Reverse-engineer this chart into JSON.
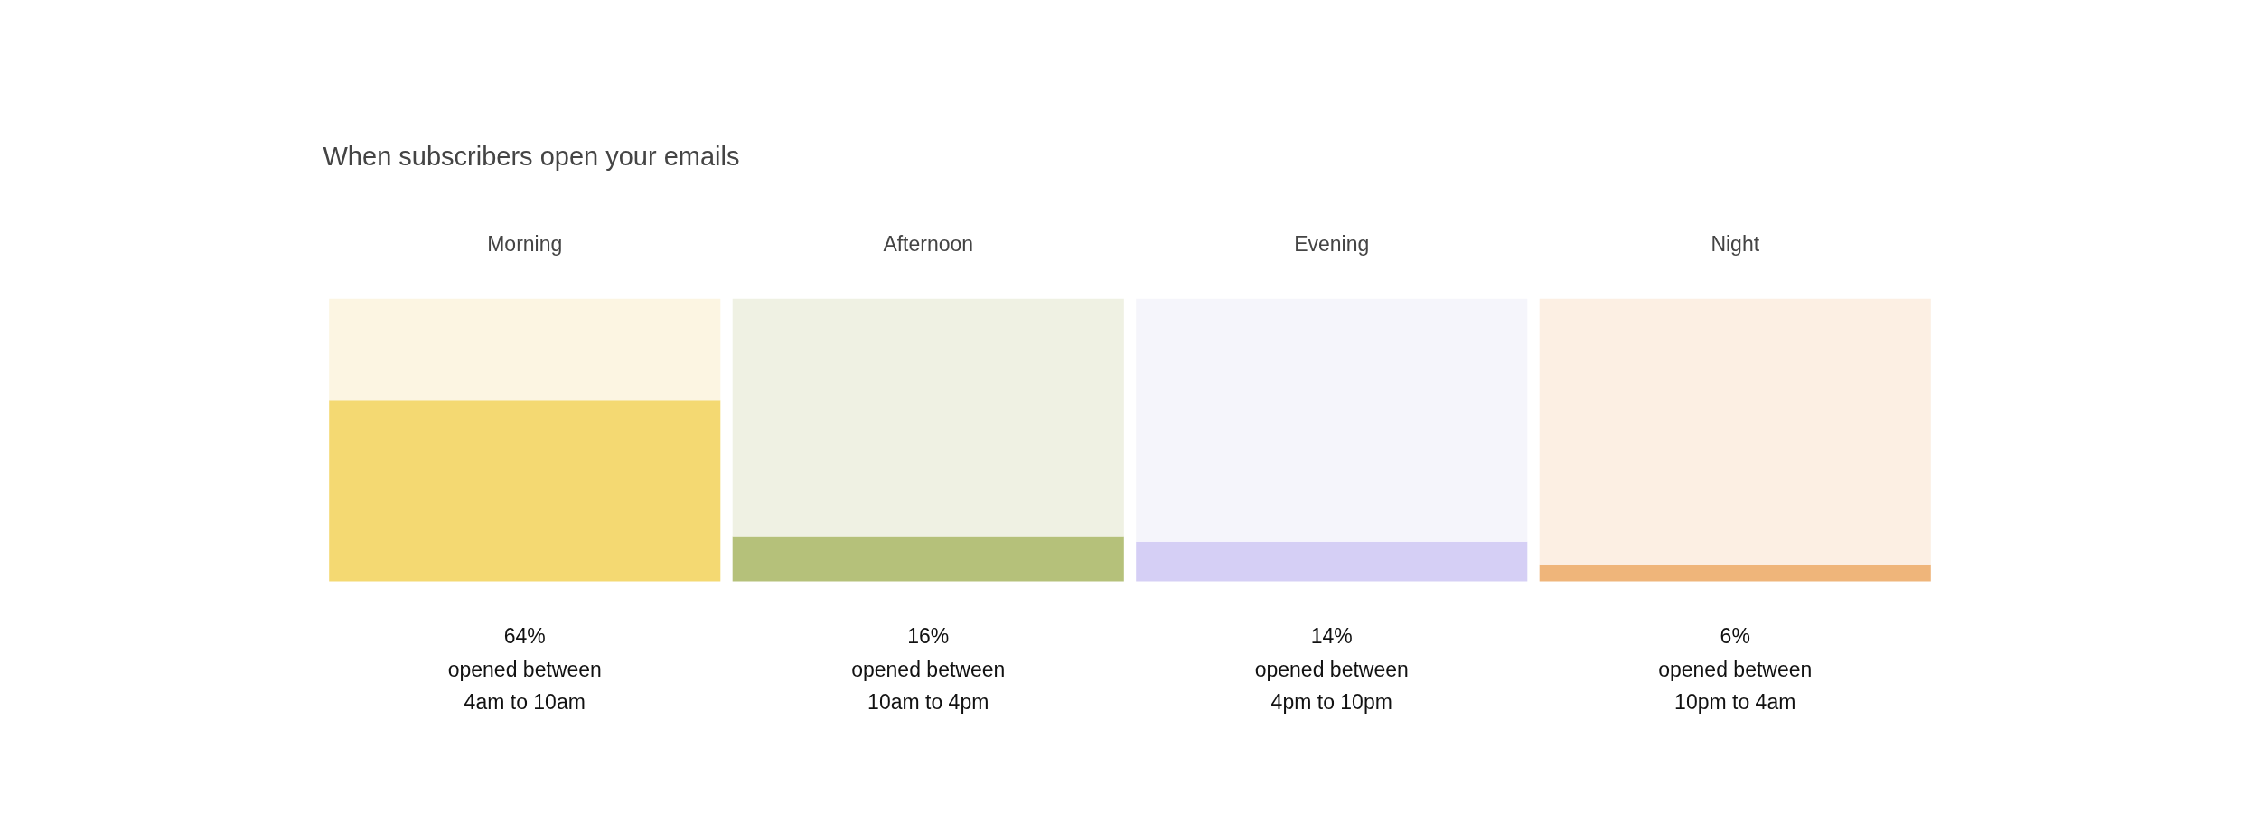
{
  "chart_data": {
    "type": "bar",
    "title": "When subscribers open your emails",
    "categories": [
      "Morning",
      "Afternoon",
      "Evening",
      "Night"
    ],
    "stacked": true,
    "ylim": [
      0,
      100
    ],
    "tick_labels": "x",
    "grid": false,
    "series": [
      {
        "colors": [
          "#f4d972",
          "#b5c17a",
          "#d5cff5",
          "#efb57a"
        ],
        "values": [
          64,
          16,
          14,
          6
        ],
        "value_labels": [
          "64%\nopened between\n4am to 10am",
          "16%\nopened between\n10am to 4pm",
          "14%\nopened between\n4pm to 10pm",
          "6%\nopened between\n10pm to 4am"
        ]
      },
      {
        "colors": [
          "#fcf5e2",
          "#eff1e3",
          "#f5f5fb",
          "#fcefe3"
        ],
        "values": [
          36,
          84,
          86,
          94
        ]
      }
    ]
  }
}
